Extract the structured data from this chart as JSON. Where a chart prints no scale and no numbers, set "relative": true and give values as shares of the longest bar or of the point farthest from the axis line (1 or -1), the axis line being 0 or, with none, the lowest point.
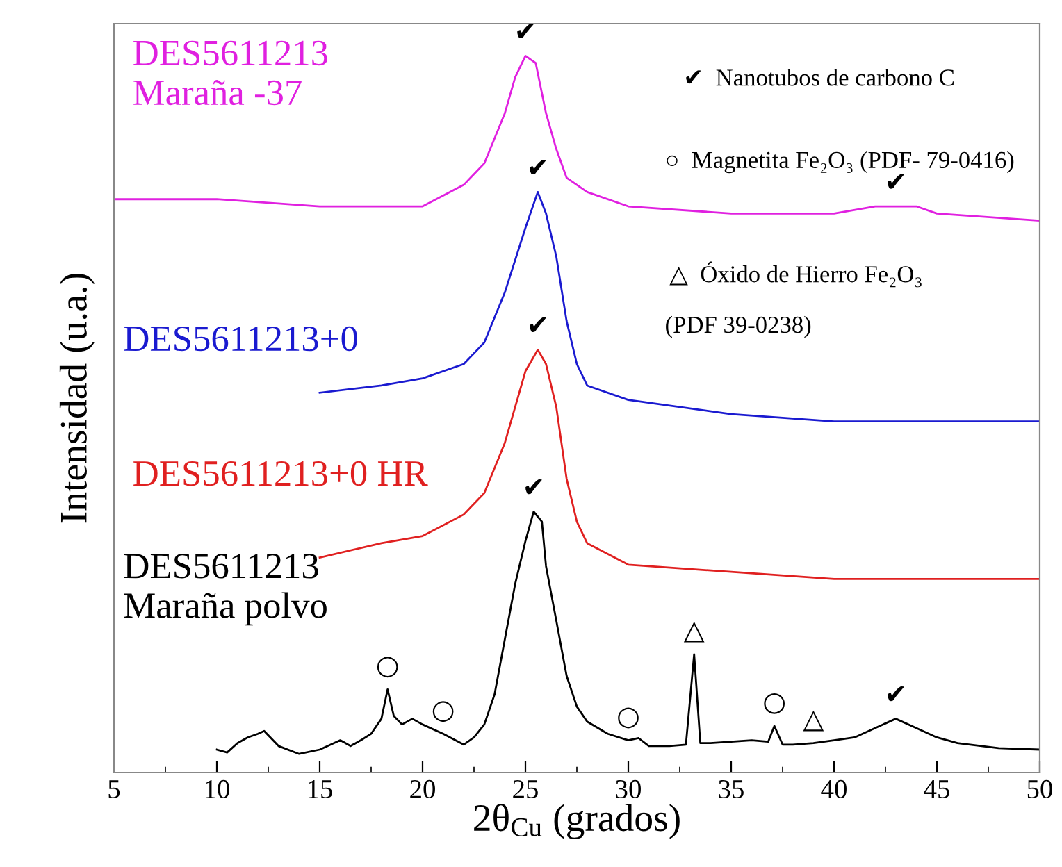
{
  "chart_data": {
    "type": "line",
    "relative": true,
    "xlabel": "2θ$_{Cu}$ (grados)",
    "ylabel": "Intensidad (u.a.)",
    "xlim": [
      5,
      50
    ],
    "xticks": [
      5,
      10,
      15,
      20,
      25,
      30,
      35,
      40,
      45,
      50
    ],
    "grid": false,
    "marker": "none",
    "line_style": "solid",
    "series": [
      {
        "name": "DES5611213\nMaraña -37",
        "color": "#e020e0",
        "x": [
          5,
          10,
          15,
          20,
          22,
          23,
          24,
          24.5,
          25,
          25.5,
          26,
          26.5,
          27,
          28,
          30,
          35,
          40,
          42,
          43,
          44,
          45,
          50
        ],
        "values": [
          0.8,
          0.8,
          0.79,
          0.79,
          0.82,
          0.85,
          0.92,
          0.97,
          1.0,
          0.99,
          0.92,
          0.87,
          0.83,
          0.81,
          0.79,
          0.78,
          0.78,
          0.79,
          0.79,
          0.79,
          0.78,
          0.77
        ]
      },
      {
        "name": "DES5611213+0",
        "color": "#1a1ad0",
        "x": [
          15,
          18,
          20,
          22,
          23,
          24,
          25,
          25.6,
          26,
          26.5,
          27,
          27.5,
          28,
          30,
          35,
          40,
          45,
          50
        ],
        "values": [
          0.53,
          0.54,
          0.55,
          0.57,
          0.6,
          0.67,
          0.76,
          0.81,
          0.78,
          0.72,
          0.63,
          0.57,
          0.54,
          0.52,
          0.5,
          0.49,
          0.49,
          0.49
        ]
      },
      {
        "name": "DES5611213+0 HR",
        "color": "#e02020",
        "x": [
          15,
          18,
          20,
          22,
          23,
          24,
          25,
          25.6,
          26,
          26.5,
          27,
          27.5,
          28,
          30,
          35,
          40,
          45,
          50
        ],
        "values": [
          0.3,
          0.32,
          0.33,
          0.36,
          0.39,
          0.46,
          0.56,
          0.59,
          0.57,
          0.51,
          0.41,
          0.35,
          0.32,
          0.29,
          0.28,
          0.27,
          0.27,
          0.27
        ]
      },
      {
        "name": "DES5611213\nMaraña polvo",
        "color": "#000000",
        "x": [
          10,
          10.5,
          11,
          11.5,
          12,
          12.3,
          13,
          14,
          15,
          16,
          16.5,
          17,
          17.5,
          18,
          18.3,
          18.6,
          19,
          19.5,
          20,
          21,
          22,
          22.5,
          23,
          23.5,
          24,
          24.5,
          25,
          25.4,
          25.8,
          26,
          26.5,
          27,
          27.5,
          28,
          29,
          30,
          30.5,
          31,
          32,
          32.8,
          33.2,
          33.5,
          34,
          35,
          36,
          36.8,
          37.1,
          37.5,
          38,
          39,
          40,
          41,
          42,
          43,
          44,
          45,
          46,
          48,
          50
        ],
        "values": [
          0.032,
          0.028,
          0.041,
          0.049,
          0.054,
          0.058,
          0.037,
          0.026,
          0.032,
          0.045,
          0.037,
          0.045,
          0.054,
          0.075,
          0.116,
          0.079,
          0.067,
          0.075,
          0.067,
          0.054,
          0.039,
          0.049,
          0.067,
          0.109,
          0.186,
          0.263,
          0.323,
          0.364,
          0.35,
          0.288,
          0.212,
          0.135,
          0.092,
          0.071,
          0.054,
          0.045,
          0.048,
          0.037,
          0.037,
          0.039,
          0.165,
          0.041,
          0.041,
          0.043,
          0.045,
          0.043,
          0.065,
          0.039,
          0.039,
          0.041,
          0.045,
          0.049,
          0.062,
          0.075,
          0.062,
          0.049,
          0.041,
          0.034,
          0.032
        ]
      }
    ],
    "annotations": [
      "✔  Nanotubos de carbono C",
      "○  Magnetita Fe₂O₃ (PDF- 79-0416)",
      "△  Óxido de Hierro Fe₂O₃",
      "(PDF 39-0238)",
      {
        "text": "✔",
        "x": 25,
        "y": 1.0
      },
      {
        "text": "✔",
        "x": 43,
        "y": 0.79
      },
      {
        "text": "✔",
        "x": 25.6,
        "y": 0.81
      },
      {
        "text": "✔",
        "x": 25.6,
        "y": 0.59
      },
      {
        "text": "✔",
        "x": 25.4,
        "y": 0.364
      },
      {
        "text": "✔",
        "x": 43,
        "y": 0.075
      },
      {
        "text": "○",
        "x": 18.3,
        "y": 0.116
      },
      {
        "text": "○",
        "x": 21,
        "y": 0.054
      },
      {
        "text": "○",
        "x": 30,
        "y": 0.045
      },
      {
        "text": "○",
        "x": 37.1,
        "y": 0.065
      },
      {
        "text": "△",
        "x": 33.2,
        "y": 0.165
      },
      {
        "text": "△",
        "x": 39,
        "y": 0.041
      }
    ]
  }
}
